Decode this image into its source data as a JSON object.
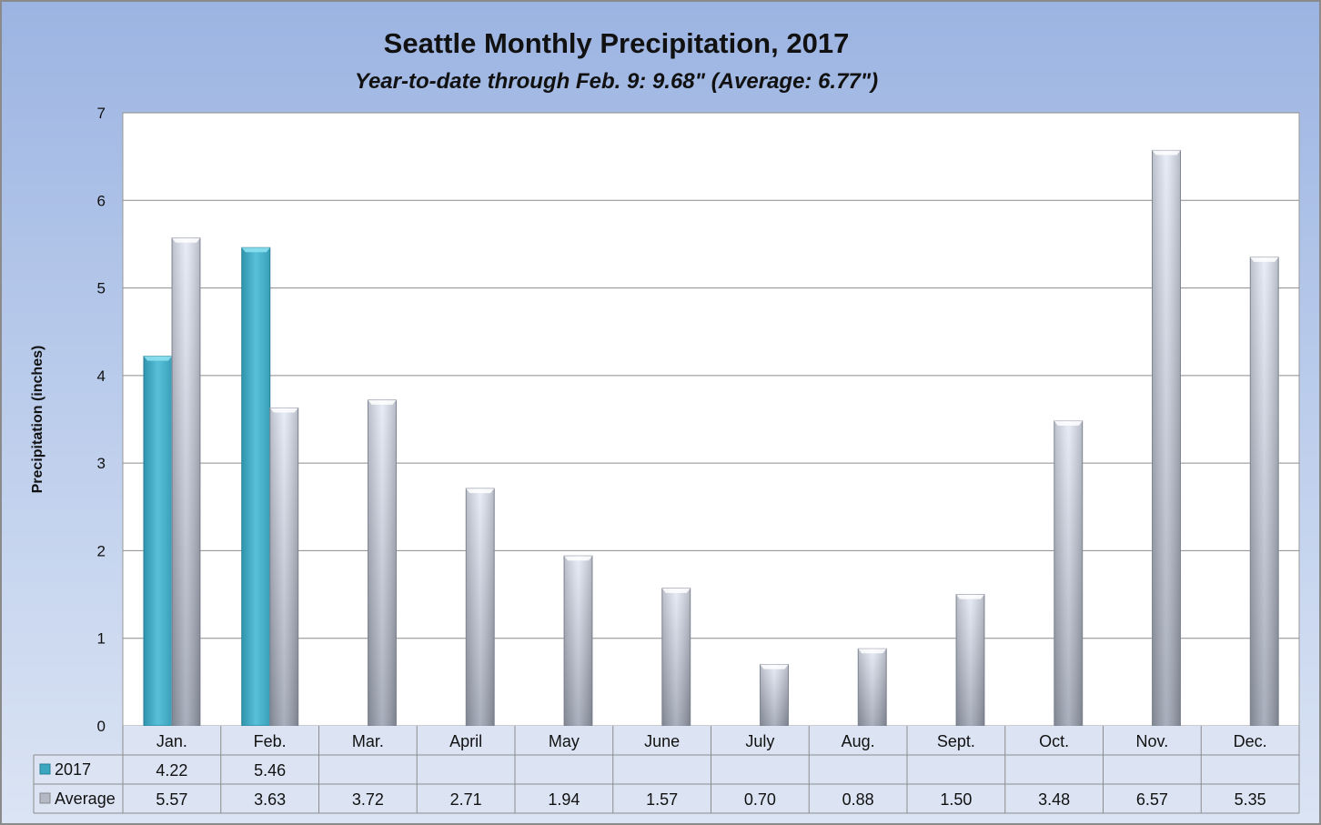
{
  "chart_data": {
    "type": "bar",
    "title": "Seattle Monthly Precipitation, 2017",
    "subtitle": "Year-to-date through Feb. 9: 9.68\" (Average: 6.77\")",
    "xlabel": "",
    "ylabel": "Precipitation (inches)",
    "ylim": [
      0,
      7
    ],
    "yticks": [
      "0",
      "1",
      "2",
      "3",
      "4",
      "5",
      "6",
      "7"
    ],
    "grid": true,
    "legend": "data-table",
    "categories": [
      "Jan.",
      "Feb.",
      "Mar.",
      "April",
      "May",
      "June",
      "July",
      "Aug.",
      "Sept.",
      "Oct.",
      "Nov.",
      "Dec."
    ],
    "series": [
      {
        "name": "2017",
        "color": "#4ab3cc",
        "values": [
          4.22,
          5.46,
          null,
          null,
          null,
          null,
          null,
          null,
          null,
          null,
          null,
          null
        ],
        "labels": [
          "4.22",
          "5.46",
          "",
          "",
          "",
          "",
          "",
          "",
          "",
          "",
          "",
          ""
        ]
      },
      {
        "name": "Average",
        "color": "#c4cad8",
        "values": [
          5.57,
          3.63,
          3.72,
          2.71,
          1.94,
          1.57,
          0.7,
          0.88,
          1.5,
          3.48,
          6.57,
          5.35
        ],
        "labels": [
          "5.57",
          "3.63",
          "3.72",
          "2.71",
          "1.94",
          "1.57",
          "0.70",
          "0.88",
          "1.50",
          "3.48",
          "6.57",
          "5.35"
        ]
      }
    ]
  }
}
